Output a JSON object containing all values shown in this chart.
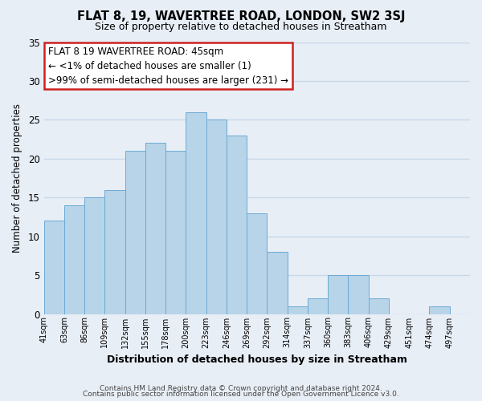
{
  "title": "FLAT 8, 19, WAVERTREE ROAD, LONDON, SW2 3SJ",
  "subtitle": "Size of property relative to detached houses in Streatham",
  "xlabel": "Distribution of detached houses by size in Streatham",
  "ylabel": "Number of detached properties",
  "footer_line1": "Contains HM Land Registry data © Crown copyright and database right 2024.",
  "footer_line2": "Contains public sector information licensed under the Open Government Licence v3.0.",
  "bin_labels": [
    "41sqm",
    "63sqm",
    "86sqm",
    "109sqm",
    "132sqm",
    "155sqm",
    "178sqm",
    "200sqm",
    "223sqm",
    "246sqm",
    "269sqm",
    "292sqm",
    "314sqm",
    "337sqm",
    "360sqm",
    "383sqm",
    "406sqm",
    "429sqm",
    "451sqm",
    "474sqm",
    "497sqm"
  ],
  "bar_heights": [
    12,
    14,
    15,
    16,
    21,
    22,
    21,
    26,
    25,
    23,
    13,
    8,
    1,
    2,
    5,
    5,
    2,
    0,
    0,
    1,
    0
  ],
  "bar_color": "#b8d4e8",
  "bar_edge_color": "#6aaad4",
  "ylim": [
    0,
    35
  ],
  "yticks": [
    0,
    5,
    10,
    15,
    20,
    25,
    30,
    35
  ],
  "annotation_title": "FLAT 8 19 WAVERTREE ROAD: 45sqm",
  "annotation_line2": "← <1% of detached houses are smaller (1)",
  "annotation_line3": ">99% of semi-detached houses are larger (231) →",
  "background_color": "#e8eef6",
  "plot_bg_color": "#e8eef6",
  "grid_color": "#c8d8e8",
  "ann_box_color": "#cc2222"
}
